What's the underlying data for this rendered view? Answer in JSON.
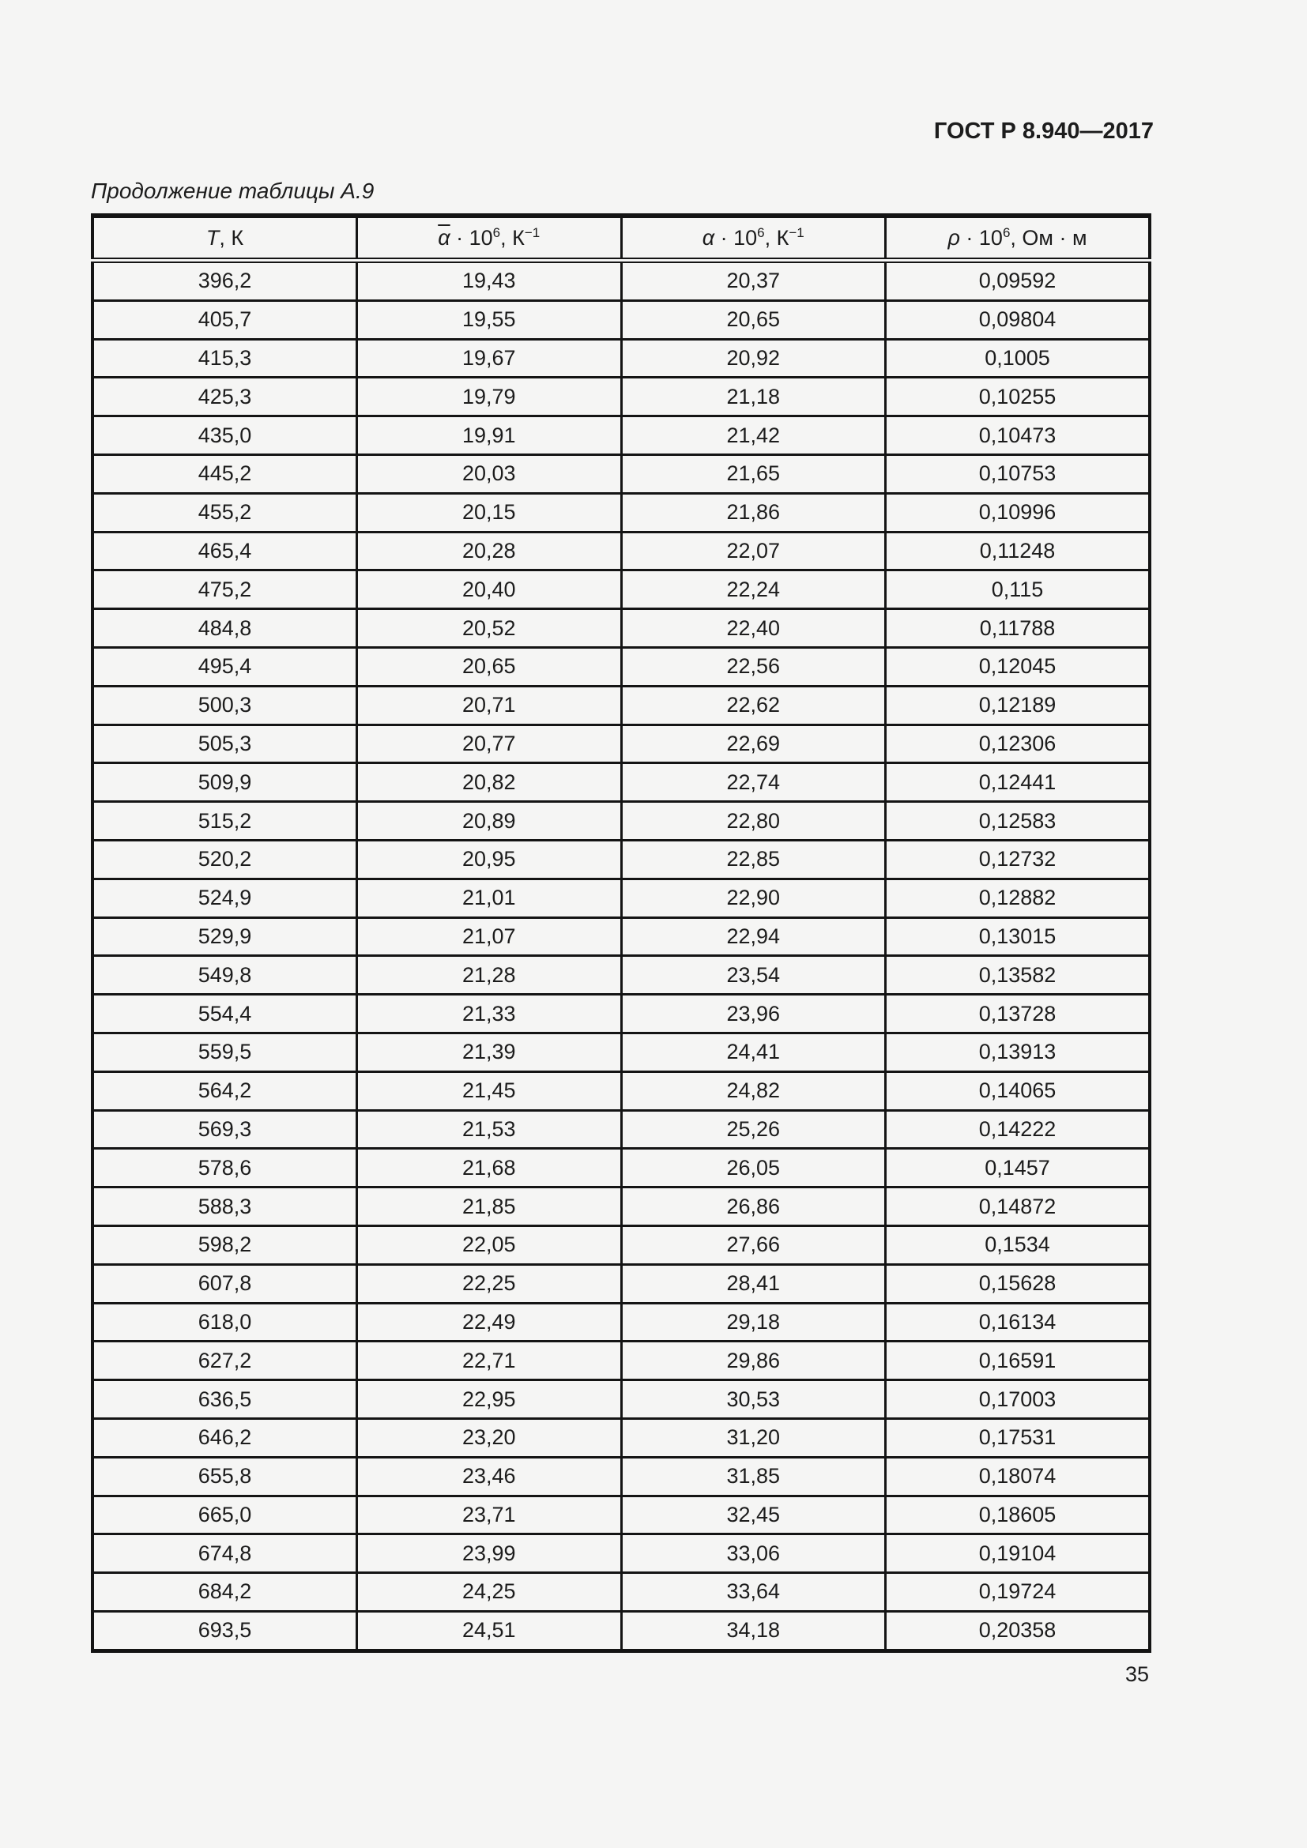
{
  "page": {
    "doc_number": "ГОСТ Р 8.940—2017",
    "table_caption": "Продолжение таблицы А.9",
    "page_number": "35"
  },
  "table": {
    "columns": [
      {
        "sym": "Т",
        "pre": ", К",
        "sup1": "",
        "mid": "",
        "sup2": ""
      },
      {
        "sym": "α",
        "pre": " · 10",
        "sup1": "6",
        "mid": ", К",
        "sup2": "−1"
      },
      {
        "sym": "α",
        "pre": " · 10",
        "sup1": "6",
        "mid": ", К",
        "sup2": "−1"
      },
      {
        "sym": "ρ",
        "pre": " · 10",
        "sup1": "6",
        "mid": ", Ом · м",
        "sup2": ""
      }
    ],
    "rows": [
      [
        "396,2",
        "19,43",
        "20,37",
        "0,09592"
      ],
      [
        "405,7",
        "19,55",
        "20,65",
        "0,09804"
      ],
      [
        "415,3",
        "19,67",
        "20,92",
        "0,1005"
      ],
      [
        "425,3",
        "19,79",
        "21,18",
        "0,10255"
      ],
      [
        "435,0",
        "19,91",
        "21,42",
        "0,10473"
      ],
      [
        "445,2",
        "20,03",
        "21,65",
        "0,10753"
      ],
      [
        "455,2",
        "20,15",
        "21,86",
        "0,10996"
      ],
      [
        "465,4",
        "20,28",
        "22,07",
        "0,11248"
      ],
      [
        "475,2",
        "20,40",
        "22,24",
        "0,115"
      ],
      [
        "484,8",
        "20,52",
        "22,40",
        "0,11788"
      ],
      [
        "495,4",
        "20,65",
        "22,56",
        "0,12045"
      ],
      [
        "500,3",
        "20,71",
        "22,62",
        "0,12189"
      ],
      [
        "505,3",
        "20,77",
        "22,69",
        "0,12306"
      ],
      [
        "509,9",
        "20,82",
        "22,74",
        "0,12441"
      ],
      [
        "515,2",
        "20,89",
        "22,80",
        "0,12583"
      ],
      [
        "520,2",
        "20,95",
        "22,85",
        "0,12732"
      ],
      [
        "524,9",
        "21,01",
        "22,90",
        "0,12882"
      ],
      [
        "529,9",
        "21,07",
        "22,94",
        "0,13015"
      ],
      [
        "549,8",
        "21,28",
        "23,54",
        "0,13582"
      ],
      [
        "554,4",
        "21,33",
        "23,96",
        "0,13728"
      ],
      [
        "559,5",
        "21,39",
        "24,41",
        "0,13913"
      ],
      [
        "564,2",
        "21,45",
        "24,82",
        "0,14065"
      ],
      [
        "569,3",
        "21,53",
        "25,26",
        "0,14222"
      ],
      [
        "578,6",
        "21,68",
        "26,05",
        "0,1457"
      ],
      [
        "588,3",
        "21,85",
        "26,86",
        "0,14872"
      ],
      [
        "598,2",
        "22,05",
        "27,66",
        "0,1534"
      ],
      [
        "607,8",
        "22,25",
        "28,41",
        "0,15628"
      ],
      [
        "618,0",
        "22,49",
        "29,18",
        "0,16134"
      ],
      [
        "627,2",
        "22,71",
        "29,86",
        "0,16591"
      ],
      [
        "636,5",
        "22,95",
        "30,53",
        "0,17003"
      ],
      [
        "646,2",
        "23,20",
        "31,20",
        "0,17531"
      ],
      [
        "655,8",
        "23,46",
        "31,85",
        "0,18074"
      ],
      [
        "665,0",
        "23,71",
        "32,45",
        "0,18605"
      ],
      [
        "674,8",
        "23,99",
        "33,06",
        "0,19104"
      ],
      [
        "684,2",
        "24,25",
        "33,64",
        "0,19724"
      ],
      [
        "693,5",
        "24,51",
        "34,18",
        "0,20358"
      ]
    ]
  }
}
